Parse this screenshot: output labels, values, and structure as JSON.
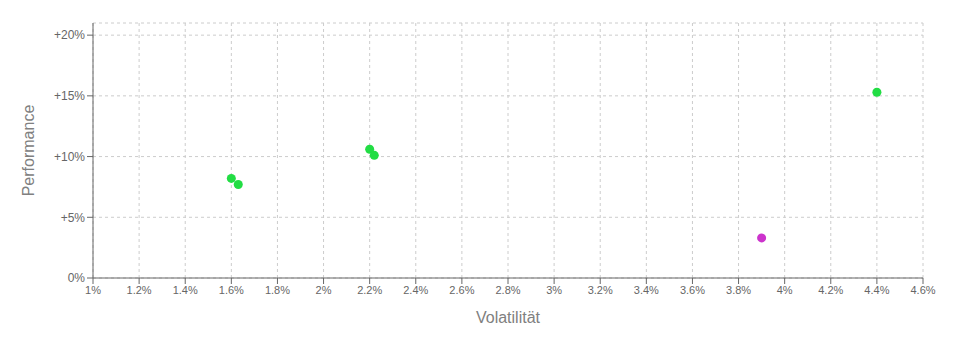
{
  "chart_data": {
    "type": "scatter",
    "xlabel": "Volatilität",
    "ylabel": "Performance",
    "xlim": [
      0.01,
      0.046
    ],
    "ylim": [
      0.0,
      0.21
    ],
    "xticks": [
      {
        "value": 0.01,
        "label": "1%"
      },
      {
        "value": 0.012,
        "label": "1.2%"
      },
      {
        "value": 0.014,
        "label": "1.4%"
      },
      {
        "value": 0.016,
        "label": "1.6%"
      },
      {
        "value": 0.018,
        "label": "1.8%"
      },
      {
        "value": 0.02,
        "label": "2%"
      },
      {
        "value": 0.022,
        "label": "2.2%"
      },
      {
        "value": 0.024,
        "label": "2.4%"
      },
      {
        "value": 0.026,
        "label": "2.6%"
      },
      {
        "value": 0.028,
        "label": "2.8%"
      },
      {
        "value": 0.03,
        "label": "3%"
      },
      {
        "value": 0.032,
        "label": "3.2%"
      },
      {
        "value": 0.034,
        "label": "3.4%"
      },
      {
        "value": 0.036,
        "label": "3.6%"
      },
      {
        "value": 0.038,
        "label": "3.8%"
      },
      {
        "value": 0.04,
        "label": "4%"
      },
      {
        "value": 0.042,
        "label": "4.2%"
      },
      {
        "value": 0.044,
        "label": "4.4%"
      },
      {
        "value": 0.046,
        "label": "4.6%"
      }
    ],
    "yticks": [
      {
        "value": 0.0,
        "label": "0%"
      },
      {
        "value": 0.05,
        "label": "+5%"
      },
      {
        "value": 0.1,
        "label": "+10%"
      },
      {
        "value": 0.15,
        "label": "+15%"
      },
      {
        "value": 0.2,
        "label": "+20%"
      }
    ],
    "grid": true,
    "series": [
      {
        "color": "#22dd44",
        "x": [
          0.016,
          0.0163,
          0.022,
          0.0222,
          0.044
        ],
        "values": [
          0.082,
          0.077,
          0.106,
          0.101,
          0.153
        ]
      },
      {
        "color": "#cc33cc",
        "x": [
          0.039
        ],
        "values": [
          0.033
        ]
      }
    ]
  }
}
